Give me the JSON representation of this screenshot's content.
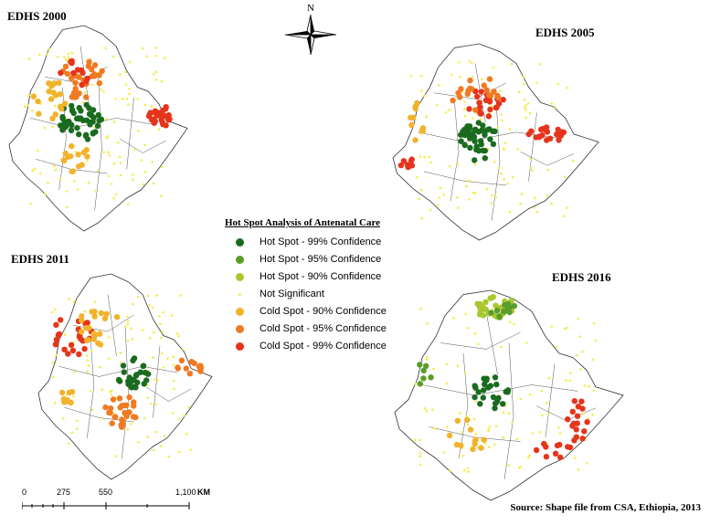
{
  "maps": [
    {
      "title": "EDHS 2000"
    },
    {
      "title": "EDHS 2005"
    },
    {
      "title": "EDHS 2011"
    },
    {
      "title": "EDHS 2016"
    }
  ],
  "compass": {
    "label": "N",
    "icon": "north-arrow-icon"
  },
  "legend": {
    "title": "Hot Spot Analysis of Antenatal Care",
    "items": [
      {
        "label": "Hot Spot - 99% Confidence",
        "color": "#1a6b1f"
      },
      {
        "label": "Hot Spot - 95% Confidence",
        "color": "#5a9d2a"
      },
      {
        "label": "Hot Spot - 90% Confidence",
        "color": "#a8c82e"
      },
      {
        "label": "Not Significant",
        "color": "#f5ec4a"
      },
      {
        "label": "Cold Spot - 90% Confidence",
        "color": "#f2b32c"
      },
      {
        "label": "Cold Spot - 95% Confidence",
        "color": "#ef7a22"
      },
      {
        "label": "Cold Spot - 99% Confidence",
        "color": "#e6341c"
      }
    ]
  },
  "scale_bar": {
    "ticks": [
      "0",
      "275",
      "550",
      "1,100"
    ],
    "unit": "KM"
  },
  "source": "Source: Shape file from CSA, Ethiopia, 2013"
}
